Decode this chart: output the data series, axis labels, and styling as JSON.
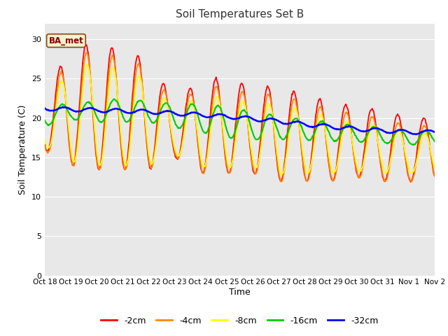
{
  "title": "Soil Temperatures Set B",
  "xlabel": "Time",
  "ylabel": "Soil Temperature (C)",
  "ylim": [
    0,
    32
  ],
  "yticks": [
    0,
    5,
    10,
    15,
    20,
    25,
    30
  ],
  "legend_label": "BA_met",
  "fig_color": "#ffffff",
  "plot_bg_color": "#e8e8e8",
  "grid_color": "#ffffff",
  "line_colors": {
    "-2cm": "#ff0000",
    "-4cm": "#ff8800",
    "-8cm": "#ffff00",
    "-16cm": "#00cc00",
    "-32cm": "#0000ff"
  },
  "date_labels": [
    "Oct 18",
    "Oct 19",
    "Oct 20",
    "Oct 21",
    "Oct 22",
    "Oct 23",
    "Oct 24",
    "Oct 25",
    "Oct 26",
    "Oct 27",
    "Oct 28",
    "Oct 29",
    "Oct 30",
    "Oct 31",
    "Nov 1",
    "Nov 2"
  ],
  "num_days": 15,
  "points_per_day": 48
}
